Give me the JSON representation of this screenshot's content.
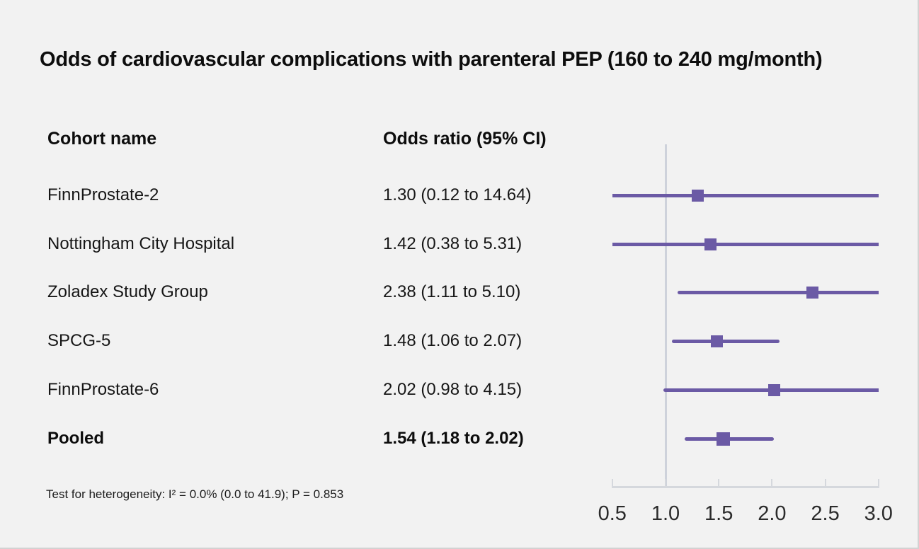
{
  "page": {
    "title": "Odds of cardiovascular complications with parenteral PEP (160 to 240 mg/month)",
    "footnote": "Test for heterogeneity: I² = 0.0% (0.0 to 41.9); P = 0.853"
  },
  "table": {
    "columns": [
      "Cohort name",
      "Odds ratio (95% CI)"
    ]
  },
  "chart_data": {
    "type": "forest",
    "title": "Odds of cardiovascular complications with parenteral PEP (160 to 240 mg/month)",
    "effect_measure": "Odds ratio (95% CI)",
    "columns": [
      "Cohort name",
      "Odds ratio (95% CI)"
    ],
    "rows": [
      {
        "label": "FinnProstate-2",
        "or": 1.3,
        "ci_low": 0.12,
        "ci_high": 14.64,
        "or_text": "1.30 (0.12 to 14.64)",
        "pooled": false
      },
      {
        "label": "Nottingham City Hospital",
        "or": 1.42,
        "ci_low": 0.38,
        "ci_high": 5.31,
        "or_text": "1.42 (0.38 to 5.31)",
        "pooled": false
      },
      {
        "label": "Zoladex Study Group",
        "or": 2.38,
        "ci_low": 1.11,
        "ci_high": 5.1,
        "or_text": "2.38 (1.11 to 5.10)",
        "pooled": false
      },
      {
        "label": "SPCG-5",
        "or": 1.48,
        "ci_low": 1.06,
        "ci_high": 2.07,
        "or_text": "1.48 (1.06 to 2.07)",
        "pooled": false
      },
      {
        "label": "FinnProstate-6",
        "or": 2.02,
        "ci_low": 0.98,
        "ci_high": 4.15,
        "or_text": "2.02 (0.98 to 4.15)",
        "pooled": false
      },
      {
        "label": "Pooled",
        "or": 1.54,
        "ci_low": 1.18,
        "ci_high": 2.02,
        "or_text": "1.54 (1.18 to 2.02)",
        "pooled": true
      }
    ],
    "x_axis": {
      "min": 0.5,
      "max": 3.0,
      "ticks": [
        0.5,
        1.0,
        1.5,
        2.0,
        2.5,
        3.0
      ],
      "tick_labels": [
        "0.5",
        "1.0",
        "1.5",
        "2.0",
        "2.5",
        "3.0"
      ],
      "reference_line": 1.0,
      "grid": false
    },
    "legend": null,
    "footnote": "Test for heterogeneity: I² = 0.0% (0.0 to 41.9); P = 0.853",
    "colors": {
      "marker": "#6b5aa5",
      "ci_line": "#6b5aa5",
      "reference_line": "#ced2db",
      "axis": "#d5d8dd",
      "background": "#f2f2f2",
      "text": "#111111"
    }
  }
}
